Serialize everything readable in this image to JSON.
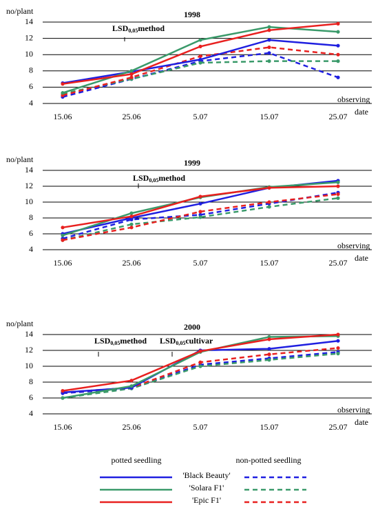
{
  "chart_data": [
    {
      "type": "line",
      "title": "1998",
      "ylabel": "no/plant",
      "xlabel": [
        "observing",
        "date"
      ],
      "categories": [
        "15.06",
        "25.06",
        "5.07",
        "15.07",
        "25.07"
      ],
      "ylim": [
        4,
        14
      ],
      "yticks": [
        4,
        6,
        8,
        10,
        12,
        14
      ],
      "grid": true,
      "annotations": [
        {
          "label": "LSD",
          "sub": "0,05",
          "suffix": "method"
        }
      ],
      "series": [
        {
          "color": "#1f1fe0",
          "potted": [
            6.5,
            7.9,
            9.4,
            11.8,
            11.1
          ],
          "non_potted": [
            4.8,
            7.0,
            9.2,
            10.2,
            7.2
          ]
        },
        {
          "color": "#3a9a6a",
          "potted": [
            5.3,
            8.0,
            11.8,
            13.4,
            12.8
          ],
          "non_potted": [
            5.2,
            7.0,
            9.0,
            9.2,
            9.2
          ]
        },
        {
          "color": "#e8201f",
          "potted": [
            6.4,
            7.6,
            11.0,
            13.0,
            13.8
          ],
          "non_potted": [
            5.0,
            7.2,
            9.8,
            10.9,
            10.0
          ]
        }
      ]
    },
    {
      "type": "line",
      "title": "1999",
      "ylabel": "no/plant",
      "xlabel": [
        "observing",
        "date"
      ],
      "categories": [
        "15.06",
        "25.06",
        "5.07",
        "15.07",
        "25.07"
      ],
      "ylim": [
        4,
        14
      ],
      "yticks": [
        4,
        6,
        8,
        10,
        12,
        14
      ],
      "grid": true,
      "annotations": [
        {
          "label": "LSD",
          "sub": "0,05",
          "suffix": "method"
        }
      ],
      "series": [
        {
          "color": "#1f1fe0",
          "potted": [
            6.0,
            8.0,
            9.8,
            11.8,
            12.7
          ],
          "non_potted": [
            5.4,
            7.8,
            8.4,
            9.8,
            11.2
          ]
        },
        {
          "color": "#3a9a6a",
          "potted": [
            5.8,
            8.6,
            10.6,
            11.9,
            12.5
          ],
          "non_potted": [
            5.2,
            7.2,
            8.1,
            9.4,
            10.5
          ]
        },
        {
          "color": "#e8201f",
          "potted": [
            6.8,
            8.2,
            10.7,
            11.8,
            12.0
          ],
          "non_potted": [
            5.2,
            6.8,
            8.8,
            10.0,
            11.0
          ]
        }
      ]
    },
    {
      "type": "line",
      "title": "2000",
      "ylabel": "no/plant",
      "xlabel": [
        "observing",
        "date"
      ],
      "categories": [
        "15.06",
        "25.06",
        "5.07",
        "15.07",
        "25.07"
      ],
      "ylim": [
        4,
        14
      ],
      "yticks": [
        4,
        6,
        8,
        10,
        12,
        14
      ],
      "grid": true,
      "annotations": [
        {
          "label": "LSD",
          "sub": "0,05",
          "suffix": "method"
        },
        {
          "label": "LSD",
          "sub": "0,05",
          "suffix": "cultivar"
        }
      ],
      "series": [
        {
          "color": "#1f1fe0",
          "potted": [
            6.7,
            7.3,
            12.0,
            12.2,
            13.2
          ],
          "non_potted": [
            6.6,
            7.2,
            10.2,
            11.0,
            11.8
          ]
        },
        {
          "color": "#3a9a6a",
          "potted": [
            6.0,
            7.5,
            11.8,
            13.7,
            13.8
          ],
          "non_potted": [
            6.0,
            7.2,
            10.0,
            10.8,
            11.6
          ]
        },
        {
          "color": "#e8201f",
          "potted": [
            6.9,
            8.2,
            11.9,
            13.4,
            14.0
          ],
          "non_potted": [
            6.7,
            7.3,
            10.5,
            11.5,
            12.3
          ]
        }
      ]
    }
  ],
  "legend": {
    "headers": [
      "potted seedling",
      "non-potted seedling"
    ],
    "names": [
      "'Black Beauty'",
      "'Solara F1'",
      "'Epic F1'"
    ]
  }
}
